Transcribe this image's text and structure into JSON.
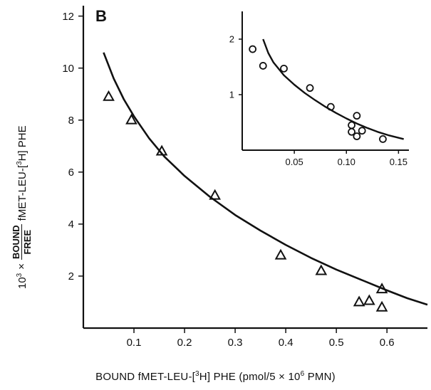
{
  "chart_data": [
    {
      "type": "scatter",
      "panel_label": "B",
      "xlabel": {
        "prefix": "BOUND fMET-LEU-[",
        "sup1": "3",
        "mid": "H] PHE (pmol/5 × 10",
        "sup2": "6",
        "suffix": " PMN)"
      },
      "ylabel": {
        "prefix": "10",
        "sup1": "3",
        "times": "×",
        "numerator": "BOUND",
        "denominator": "FREE",
        "compound_pre": "fMET-LEU-[",
        "sup2": "3",
        "compound_post": "H] PHE"
      },
      "xlim": [
        0,
        0.68
      ],
      "ylim": [
        0,
        12.4
      ],
      "xticks": [
        0.1,
        0.2,
        0.3,
        0.4,
        0.5,
        0.6
      ],
      "xtick_labels": [
        "0.1",
        "0.2",
        "0.3",
        "0.4",
        "0.5",
        "0.6"
      ],
      "yticks": [
        2,
        4,
        6,
        8,
        10,
        12
      ],
      "ytick_labels": [
        "2",
        "4",
        "6",
        "8",
        "10",
        "12"
      ],
      "marker": "triangle",
      "points": [
        {
          "x": 0.05,
          "y": 8.9
        },
        {
          "x": 0.095,
          "y": 8.0
        },
        {
          "x": 0.155,
          "y": 6.8
        },
        {
          "x": 0.26,
          "y": 5.1
        },
        {
          "x": 0.39,
          "y": 2.8
        },
        {
          "x": 0.47,
          "y": 2.2
        },
        {
          "x": 0.545,
          "y": 1.0
        },
        {
          "x": 0.565,
          "y": 1.05
        },
        {
          "x": 0.59,
          "y": 1.5
        },
        {
          "x": 0.59,
          "y": 0.8
        }
      ],
      "curve": [
        {
          "x": 0.04,
          "y": 10.6
        },
        {
          "x": 0.06,
          "y": 9.6
        },
        {
          "x": 0.08,
          "y": 8.8
        },
        {
          "x": 0.1,
          "y": 8.15
        },
        {
          "x": 0.13,
          "y": 7.3
        },
        {
          "x": 0.16,
          "y": 6.6
        },
        {
          "x": 0.2,
          "y": 5.85
        },
        {
          "x": 0.25,
          "y": 5.05
        },
        {
          "x": 0.3,
          "y": 4.35
        },
        {
          "x": 0.35,
          "y": 3.75
        },
        {
          "x": 0.4,
          "y": 3.2
        },
        {
          "x": 0.45,
          "y": 2.7
        },
        {
          "x": 0.5,
          "y": 2.25
        },
        {
          "x": 0.55,
          "y": 1.85
        },
        {
          "x": 0.6,
          "y": 1.45
        },
        {
          "x": 0.64,
          "y": 1.15
        },
        {
          "x": 0.68,
          "y": 0.9
        }
      ]
    },
    {
      "type": "scatter",
      "inset": true,
      "xlim": [
        0,
        0.16
      ],
      "ylim": [
        0,
        2.5
      ],
      "xticks": [
        0.05,
        0.1,
        0.15
      ],
      "xtick_labels": [
        "0.05",
        "0.10",
        "0.15"
      ],
      "yticks": [
        1,
        2
      ],
      "ytick_labels": [
        "1",
        "2"
      ],
      "marker": "circle",
      "points": [
        {
          "x": 0.01,
          "y": 1.82
        },
        {
          "x": 0.02,
          "y": 1.52
        },
        {
          "x": 0.04,
          "y": 1.47
        },
        {
          "x": 0.065,
          "y": 1.12
        },
        {
          "x": 0.085,
          "y": 0.78
        },
        {
          "x": 0.105,
          "y": 0.45
        },
        {
          "x": 0.11,
          "y": 0.62
        },
        {
          "x": 0.105,
          "y": 0.33
        },
        {
          "x": 0.11,
          "y": 0.25
        },
        {
          "x": 0.115,
          "y": 0.35
        },
        {
          "x": 0.135,
          "y": 0.2
        }
      ],
      "curve": [
        {
          "x": 0.02,
          "y": 2.0
        },
        {
          "x": 0.025,
          "y": 1.75
        },
        {
          "x": 0.03,
          "y": 1.58
        },
        {
          "x": 0.04,
          "y": 1.35
        },
        {
          "x": 0.05,
          "y": 1.18
        },
        {
          "x": 0.06,
          "y": 1.03
        },
        {
          "x": 0.07,
          "y": 0.9
        },
        {
          "x": 0.08,
          "y": 0.78
        },
        {
          "x": 0.09,
          "y": 0.67
        },
        {
          "x": 0.1,
          "y": 0.57
        },
        {
          "x": 0.11,
          "y": 0.48
        },
        {
          "x": 0.12,
          "y": 0.4
        },
        {
          "x": 0.13,
          "y": 0.33
        },
        {
          "x": 0.14,
          "y": 0.27
        },
        {
          "x": 0.155,
          "y": 0.2
        }
      ]
    }
  ]
}
